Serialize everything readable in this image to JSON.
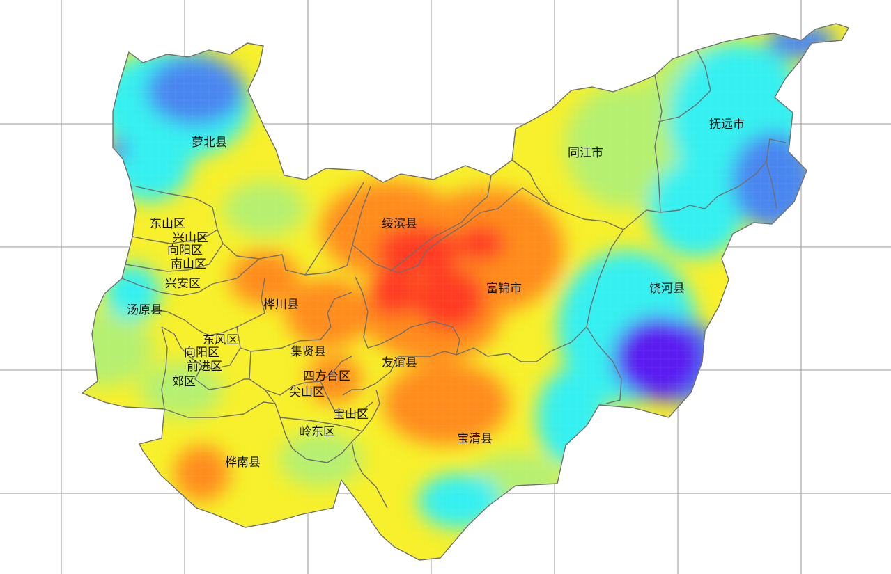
{
  "map": {
    "colors": {
      "hot": "#ff3a20",
      "orange": "#ff8c1a",
      "yellow": "#f7f02a",
      "green": "#b6f070",
      "cyan": "#34f0f0",
      "blue": "#4a86f0",
      "purple": "#5a1ef0",
      "border": "#6f6f6f",
      "grid": "#9a9a9a"
    },
    "labels": [
      "萝北县",
      "同江市",
      "抚远市",
      "东山区",
      "兴山区",
      "向阳区",
      "南山区",
      "兴安区",
      "绥滨县",
      "富锦市",
      "饶河县",
      "汤原县",
      "桦川县",
      "东风区",
      "向阳区",
      "前进区",
      "郊区",
      "集贤县",
      "友谊县",
      "四方台区",
      "尖山区",
      "宝山区",
      "岭东区",
      "宝清县",
      "桦南县"
    ]
  }
}
